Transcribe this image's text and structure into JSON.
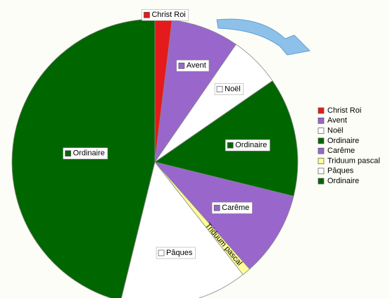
{
  "chart_data": {
    "type": "pie",
    "categories": [
      "Christ Roi",
      "Avent",
      "Noël",
      "Ordinaire",
      "Carême",
      "Triduum pascal",
      "Pâques",
      "Ordinaire"
    ],
    "values": [
      1,
      4,
      3,
      7,
      5,
      0.5,
      7.5,
      24
    ],
    "colors": [
      "#e41a1c",
      "#9966cc",
      "#ffffff",
      "#006600",
      "#9966cc",
      "#ffff99",
      "#ffffff",
      "#006600"
    ],
    "legend": "right"
  }
}
